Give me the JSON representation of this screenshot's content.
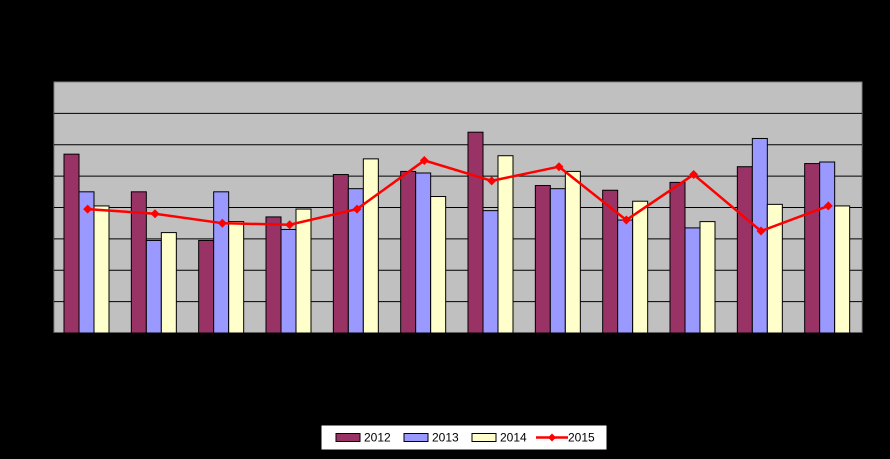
{
  "chart_data": {
    "type": "bar",
    "categories": [
      "",
      "",
      "",
      "",
      "",
      "",
      "",
      "",
      "",
      "",
      "",
      ""
    ],
    "series": [
      {
        "name": "2012",
        "type": "bar",
        "color": "#993366",
        "values": [
          5.7,
          4.5,
          2.95,
          3.7,
          5.05,
          5.15,
          6.4,
          4.7,
          4.55,
          4.8,
          5.3,
          5.4
        ]
      },
      {
        "name": "2013",
        "type": "bar",
        "color": "#9999FF",
        "values": [
          4.5,
          2.95,
          4.5,
          3.3,
          4.6,
          5.1,
          3.9,
          4.6,
          3.6,
          3.35,
          6.2,
          5.45
        ]
      },
      {
        "name": "2014",
        "type": "bar",
        "color": "#FFFFCC",
        "values": [
          4.05,
          3.2,
          3.55,
          3.95,
          5.55,
          4.35,
          5.65,
          5.15,
          4.2,
          3.55,
          4.1,
          4.05
        ]
      },
      {
        "name": "2015",
        "type": "line",
        "color": "#FF0000",
        "values": [
          3.95,
          3.8,
          3.5,
          3.45,
          3.95,
          5.5,
          4.85,
          5.3,
          3.6,
          5.05,
          3.25,
          4.05
        ]
      }
    ],
    "title": "",
    "xlabel": "",
    "ylabel": "",
    "ylim": [
      0,
      8
    ],
    "grid": true,
    "legend_position": "bottom"
  }
}
